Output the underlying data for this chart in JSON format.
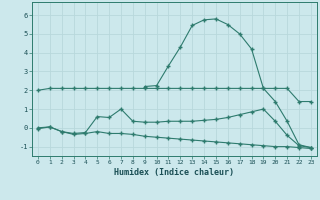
{
  "xlabel": "Humidex (Indice chaleur)",
  "bg_color": "#cce8ec",
  "grid_color": "#b8d8dc",
  "line_color": "#2e7b6e",
  "xlim": [
    -0.5,
    23.5
  ],
  "ylim": [
    -1.5,
    6.7
  ],
  "yticks": [
    -1,
    0,
    1,
    2,
    3,
    4,
    5,
    6
  ],
  "xticks": [
    0,
    1,
    2,
    3,
    4,
    5,
    6,
    7,
    8,
    9,
    10,
    11,
    12,
    13,
    14,
    15,
    16,
    17,
    18,
    19,
    20,
    21,
    22,
    23
  ],
  "line1_x": [
    0,
    1,
    2,
    3,
    4,
    5,
    6,
    7,
    8,
    9,
    10,
    11,
    12,
    13,
    14,
    15,
    16,
    17,
    18,
    19,
    20,
    21,
    22,
    23
  ],
  "line1_y": [
    2.0,
    2.1,
    2.1,
    2.1,
    2.1,
    2.1,
    2.1,
    2.1,
    2.1,
    2.1,
    2.1,
    2.1,
    2.1,
    2.1,
    2.1,
    2.1,
    2.1,
    2.1,
    2.1,
    2.1,
    2.1,
    2.1,
    1.4,
    1.4
  ],
  "line2_x": [
    0,
    1,
    2,
    3,
    4,
    5,
    6,
    7,
    8,
    9,
    10,
    11,
    12,
    13,
    14,
    15,
    16,
    17,
    18,
    19,
    20,
    21,
    22,
    23
  ],
  "line2_y": [
    0.0,
    0.05,
    -0.2,
    -0.3,
    -0.25,
    0.6,
    0.55,
    1.0,
    0.35,
    0.3,
    0.3,
    0.35,
    0.35,
    0.35,
    0.4,
    0.45,
    0.55,
    0.7,
    0.85,
    1.0,
    0.35,
    -0.4,
    -0.95,
    -1.05
  ],
  "line3_x": [
    0,
    1,
    2,
    3,
    4,
    5,
    6,
    7,
    8,
    9,
    10,
    11,
    12,
    13,
    14,
    15,
    16,
    17,
    18,
    19,
    20,
    21,
    22,
    23
  ],
  "line3_y": [
    -0.05,
    0.05,
    -0.2,
    -0.35,
    -0.3,
    -0.2,
    -0.3,
    -0.3,
    -0.35,
    -0.45,
    -0.5,
    -0.55,
    -0.6,
    -0.65,
    -0.7,
    -0.75,
    -0.8,
    -0.85,
    -0.9,
    -0.95,
    -1.0,
    -1.0,
    -1.05,
    -1.1
  ],
  "line4_x": [
    9,
    10,
    11,
    12,
    13,
    14,
    15,
    16,
    17,
    18,
    19,
    20,
    21,
    22,
    23
  ],
  "line4_y": [
    2.2,
    2.25,
    3.3,
    4.3,
    5.45,
    5.75,
    5.8,
    5.5,
    5.0,
    4.2,
    2.1,
    1.4,
    0.35,
    -0.9,
    -1.05
  ]
}
